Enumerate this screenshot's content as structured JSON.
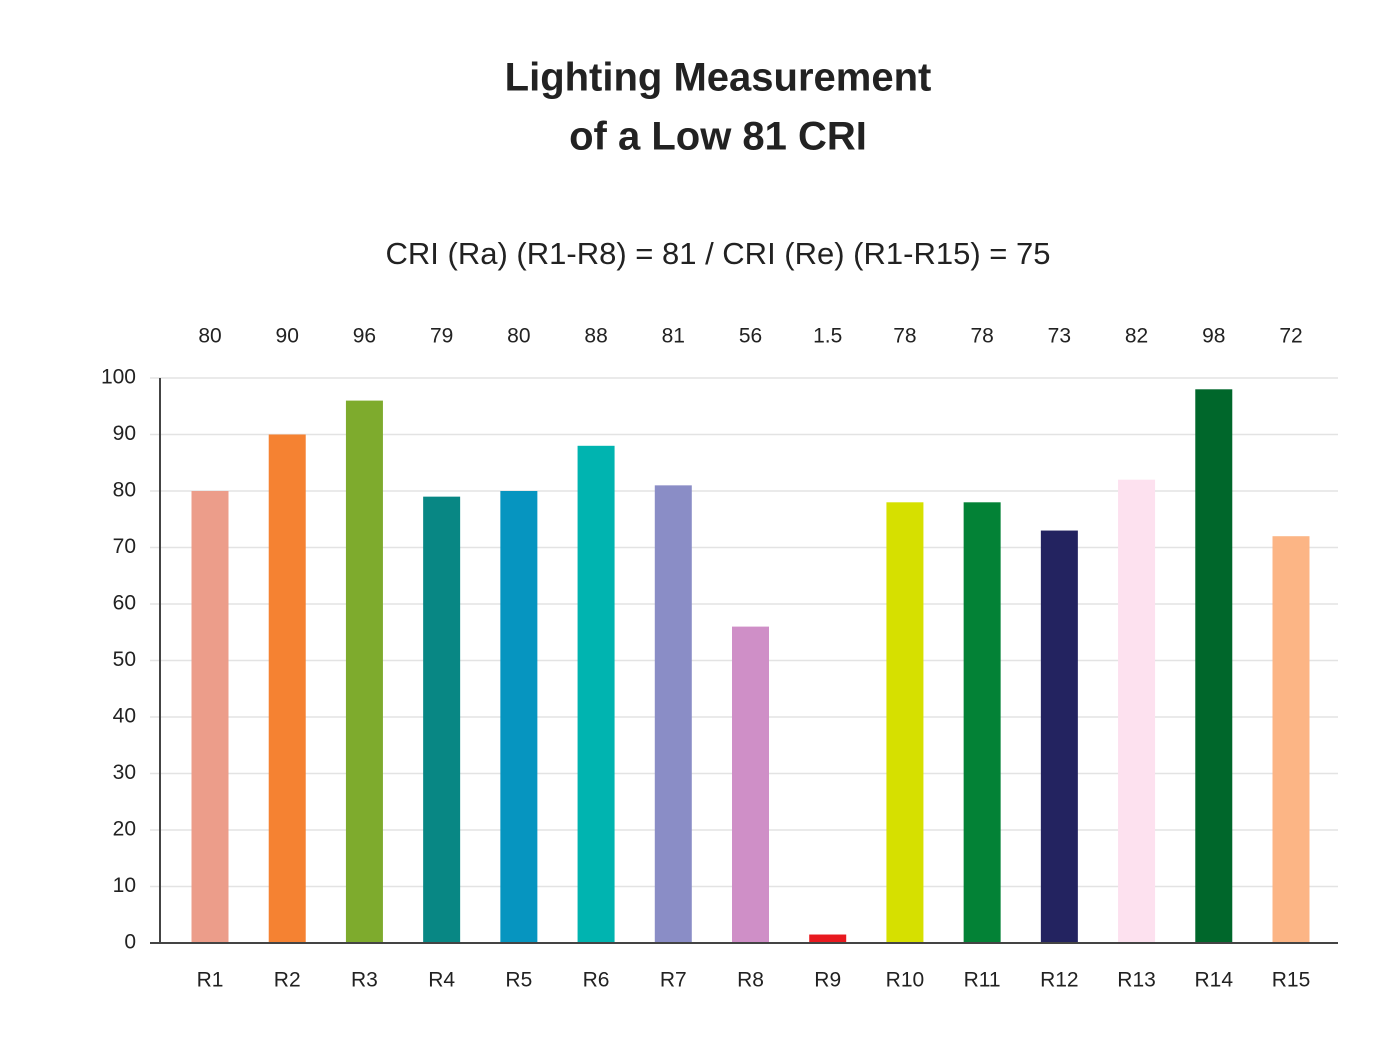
{
  "chart_data": {
    "type": "bar",
    "title": [
      "Lighting Measurement",
      "of a Low 81 CRI"
    ],
    "subtitle": "CRI (Ra) (R1-R8) = 81 / CRI (Re) (R1-R15) = 75",
    "categories": [
      "R1",
      "R2",
      "R3",
      "R4",
      "R5",
      "R6",
      "R7",
      "R8",
      "R9",
      "R10",
      "R11",
      "R12",
      "R13",
      "R14",
      "R15"
    ],
    "values": [
      80,
      90,
      96,
      79,
      80,
      88,
      81,
      56,
      1.5,
      78,
      78,
      73,
      82,
      98,
      72
    ],
    "colors": [
      "#ec9d8a",
      "#f58232",
      "#7eab2d",
      "#088784",
      "#0695c0",
      "#00b4b0",
      "#8a8dc6",
      "#cf8fc7",
      "#e8191f",
      "#d6e000",
      "#038236",
      "#232360",
      "#fde1ef",
      "#00672b",
      "#fcb585"
    ],
    "ylim": [
      0,
      100
    ],
    "yticks": [
      0,
      10,
      20,
      30,
      40,
      50,
      60,
      70,
      80,
      90,
      100
    ],
    "grid": true
  }
}
